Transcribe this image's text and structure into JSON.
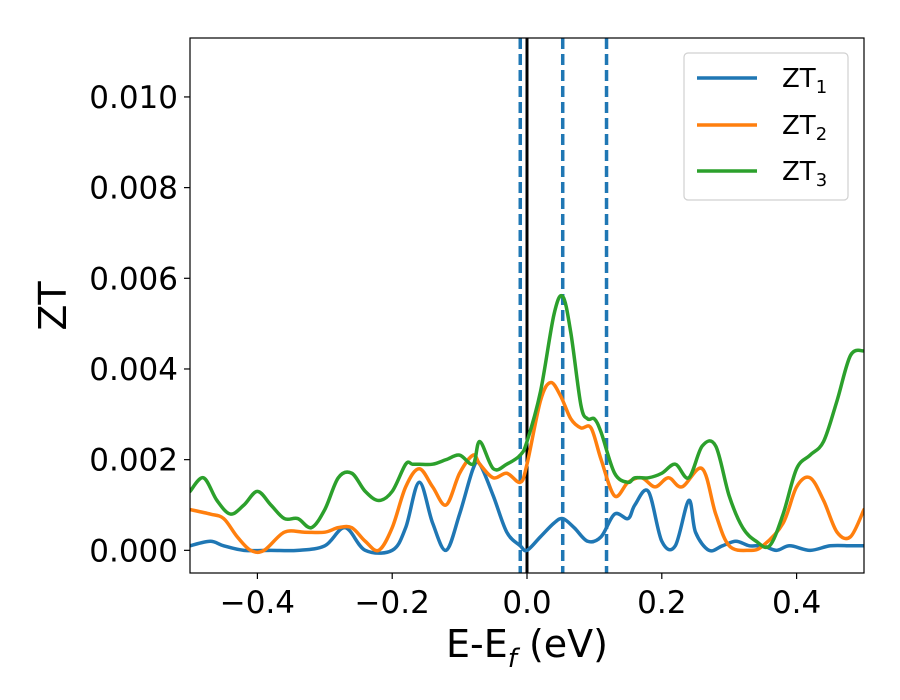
{
  "chart_data": {
    "type": "line",
    "title": "",
    "xlabel": "E-E",
    "xlabel_sub": "f",
    "xlabel_unit": " (eV)",
    "ylabel": "ZT",
    "xlim": [
      -0.5,
      0.5
    ],
    "ylim": [
      -0.0005,
      0.0113
    ],
    "xticks": [
      -0.4,
      -0.2,
      0.0,
      0.2,
      0.4
    ],
    "xtick_labels": [
      "−0.4",
      "−0.2",
      "0.0",
      "0.2",
      "0.4"
    ],
    "yticks": [
      0.0,
      0.002,
      0.004,
      0.006,
      0.008,
      0.01
    ],
    "ytick_labels": [
      "0.000",
      "0.002",
      "0.004",
      "0.006",
      "0.008",
      "0.010"
    ],
    "grid": false,
    "legend_position": "top-right",
    "vlines": [
      {
        "x": 0.0,
        "color": "#000000",
        "style": "solid"
      },
      {
        "x": -0.01,
        "color": "#1f77b4",
        "style": "dashed"
      },
      {
        "x": 0.053,
        "color": "#1f77b4",
        "style": "dashed"
      },
      {
        "x": 0.118,
        "color": "#1f77b4",
        "style": "dashed"
      }
    ],
    "series": [
      {
        "name": "ZT",
        "name_sub": "1",
        "color": "#1f77b4",
        "x": [
          -0.5,
          -0.47,
          -0.45,
          -0.42,
          -0.38,
          -0.34,
          -0.3,
          -0.27,
          -0.24,
          -0.2,
          -0.18,
          -0.16,
          -0.14,
          -0.12,
          -0.1,
          -0.08,
          -0.07,
          -0.05,
          -0.03,
          -0.01,
          0.0,
          0.02,
          0.04,
          0.053,
          0.07,
          0.09,
          0.11,
          0.13,
          0.15,
          0.16,
          0.18,
          0.2,
          0.22,
          0.24,
          0.25,
          0.27,
          0.29,
          0.31,
          0.33,
          0.35,
          0.37,
          0.39,
          0.42,
          0.45,
          0.48,
          0.5
        ],
        "y": [
          0.0001,
          0.0002,
          0.0001,
          0.0,
          0.0,
          0.0,
          0.0001,
          0.0005,
          0.0,
          0.0,
          0.0005,
          0.0015,
          0.0006,
          0.0,
          0.0008,
          0.0018,
          0.0019,
          0.0012,
          0.0004,
          0.0001,
          0.0,
          0.0003,
          0.0006,
          0.0007,
          0.0005,
          0.0002,
          0.0003,
          0.0008,
          0.0007,
          0.001,
          0.0013,
          0.0002,
          0.0001,
          0.0011,
          0.0004,
          0.0,
          0.0001,
          0.0002,
          0.0001,
          0.0001,
          0.0,
          0.0001,
          0.0,
          0.0001,
          0.0001,
          0.0001
        ]
      },
      {
        "name": "ZT",
        "name_sub": "2",
        "color": "#ff7f0e",
        "x": [
          -0.5,
          -0.47,
          -0.45,
          -0.43,
          -0.41,
          -0.39,
          -0.36,
          -0.33,
          -0.3,
          -0.28,
          -0.26,
          -0.24,
          -0.22,
          -0.2,
          -0.18,
          -0.16,
          -0.14,
          -0.12,
          -0.1,
          -0.08,
          -0.07,
          -0.05,
          -0.03,
          -0.01,
          0.0,
          0.02,
          0.035,
          0.05,
          0.065,
          0.08,
          0.095,
          0.11,
          0.13,
          0.15,
          0.17,
          0.19,
          0.21,
          0.23,
          0.26,
          0.28,
          0.3,
          0.33,
          0.35,
          0.38,
          0.4,
          0.42,
          0.44,
          0.46,
          0.48,
          0.5
        ],
        "y": [
          0.0009,
          0.0008,
          0.0007,
          0.0003,
          0.0,
          0.0,
          0.0004,
          0.0004,
          0.0004,
          0.0005,
          0.0005,
          0.0002,
          0.0,
          0.0005,
          0.0014,
          0.0018,
          0.0014,
          0.001,
          0.0017,
          0.0021,
          0.0019,
          0.0016,
          0.0017,
          0.0015,
          0.0019,
          0.0033,
          0.0037,
          0.0034,
          0.0029,
          0.0027,
          0.0027,
          0.002,
          0.0012,
          0.0015,
          0.0016,
          0.0014,
          0.0016,
          0.0014,
          0.0018,
          0.0008,
          0.0001,
          0.0,
          0.0001,
          0.0006,
          0.0014,
          0.0016,
          0.0011,
          0.0004,
          0.0003,
          0.0009
        ]
      },
      {
        "name": "ZT",
        "name_sub": "3",
        "color": "#2ca02c",
        "x": [
          -0.5,
          -0.48,
          -0.46,
          -0.44,
          -0.42,
          -0.4,
          -0.38,
          -0.36,
          -0.34,
          -0.32,
          -0.3,
          -0.28,
          -0.26,
          -0.24,
          -0.22,
          -0.2,
          -0.18,
          -0.17,
          -0.16,
          -0.14,
          -0.12,
          -0.1,
          -0.08,
          -0.07,
          -0.05,
          -0.03,
          -0.01,
          0.0,
          0.02,
          0.04,
          0.053,
          0.065,
          0.08,
          0.09,
          0.1,
          0.11,
          0.13,
          0.15,
          0.16,
          0.18,
          0.2,
          0.22,
          0.24,
          0.26,
          0.28,
          0.3,
          0.32,
          0.34,
          0.36,
          0.38,
          0.4,
          0.42,
          0.44,
          0.46,
          0.48,
          0.5
        ],
        "y": [
          0.0013,
          0.0016,
          0.0011,
          0.0008,
          0.001,
          0.0013,
          0.001,
          0.0007,
          0.0007,
          0.0005,
          0.0009,
          0.0016,
          0.0017,
          0.0013,
          0.0011,
          0.0013,
          0.0019,
          0.0019,
          0.0019,
          0.0019,
          0.002,
          0.0021,
          0.0019,
          0.0024,
          0.0018,
          0.0019,
          0.0021,
          0.0024,
          0.0035,
          0.0052,
          0.0056,
          0.0048,
          0.0032,
          0.0029,
          0.0029,
          0.0026,
          0.0017,
          0.0015,
          0.0016,
          0.0016,
          0.0017,
          0.0019,
          0.0016,
          0.0023,
          0.0023,
          0.0012,
          0.0005,
          0.0002,
          0.0001,
          0.0008,
          0.0018,
          0.0021,
          0.0024,
          0.0033,
          0.0043,
          0.0044
        ]
      }
    ]
  }
}
